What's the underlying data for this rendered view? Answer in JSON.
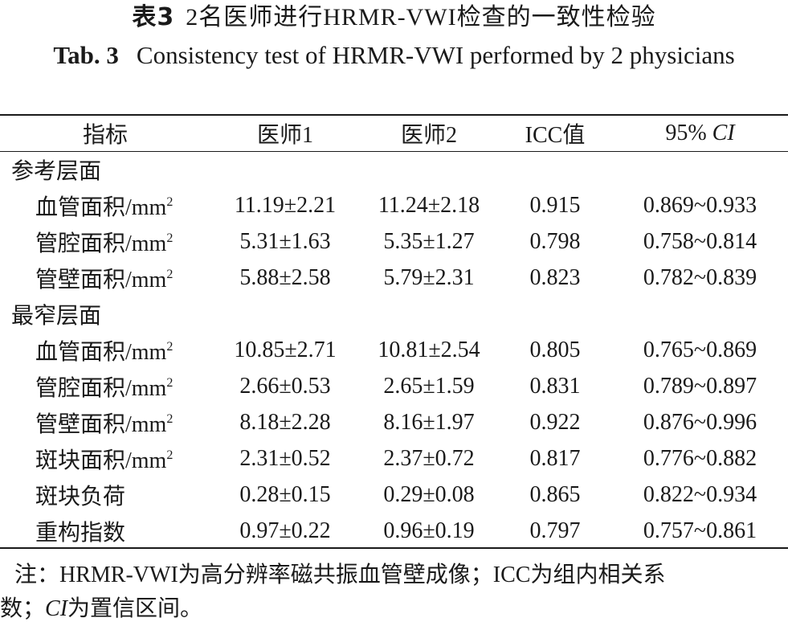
{
  "title": {
    "cn_label": "表3",
    "cn_text": "2名医师进行HRMR-VWI检查的一致性检验",
    "en_label": "Tab. 3",
    "en_text": "Consistency test of HRMR-VWI performed by 2 physicians"
  },
  "table": {
    "headers": [
      "指标",
      "医师1",
      "医师2",
      "ICC值",
      "95% "
    ],
    "header_ci_italic": "CI",
    "sections": [
      {
        "name": "参考层面",
        "rows": [
          {
            "label": "血管面积/mm",
            "sup": "2",
            "d1": "11.19±2.21",
            "d2": "11.24±2.18",
            "icc": "0.915",
            "ci": "0.869~0.933"
          },
          {
            "label": "管腔面积/mm",
            "sup": "2",
            "d1": "5.31±1.63",
            "d2": "5.35±1.27",
            "icc": "0.798",
            "ci": "0.758~0.814"
          },
          {
            "label": "管壁面积/mm",
            "sup": "2",
            "d1": "5.88±2.58",
            "d2": "5.79±2.31",
            "icc": "0.823",
            "ci": "0.782~0.839"
          }
        ]
      },
      {
        "name": "最窄层面",
        "rows": [
          {
            "label": "血管面积/mm",
            "sup": "2",
            "d1": "10.85±2.71",
            "d2": "10.81±2.54",
            "icc": "0.805",
            "ci": "0.765~0.869"
          },
          {
            "label": "管腔面积/mm",
            "sup": "2",
            "d1": "2.66±0.53",
            "d2": "2.65±1.59",
            "icc": "0.831",
            "ci": "0.789~0.897"
          },
          {
            "label": "管壁面积/mm",
            "sup": "2",
            "d1": "8.18±2.28",
            "d2": "8.16±1.97",
            "icc": "0.922",
            "ci": "0.876~0.996"
          },
          {
            "label": "斑块面积/mm",
            "sup": "2",
            "d1": "2.31±0.52",
            "d2": "2.37±0.72",
            "icc": "0.817",
            "ci": "0.776~0.882"
          },
          {
            "label": "斑块负荷",
            "sup": "",
            "d1": "0.28±0.15",
            "d2": "0.29±0.08",
            "icc": "0.865",
            "ci": "0.822~0.934"
          },
          {
            "label": "重构指数",
            "sup": "",
            "d1": "0.97±0.22",
            "d2": "0.96±0.19",
            "icc": "0.797",
            "ci": "0.757~0.861"
          }
        ]
      }
    ]
  },
  "note": {
    "line1": "注：HRMR-VWI为高分辨率磁共振血管壁成像；ICC为组内相关系",
    "line2_pre": "数；",
    "line2_ci": "CI",
    "line2_post": "为置信区间。"
  }
}
